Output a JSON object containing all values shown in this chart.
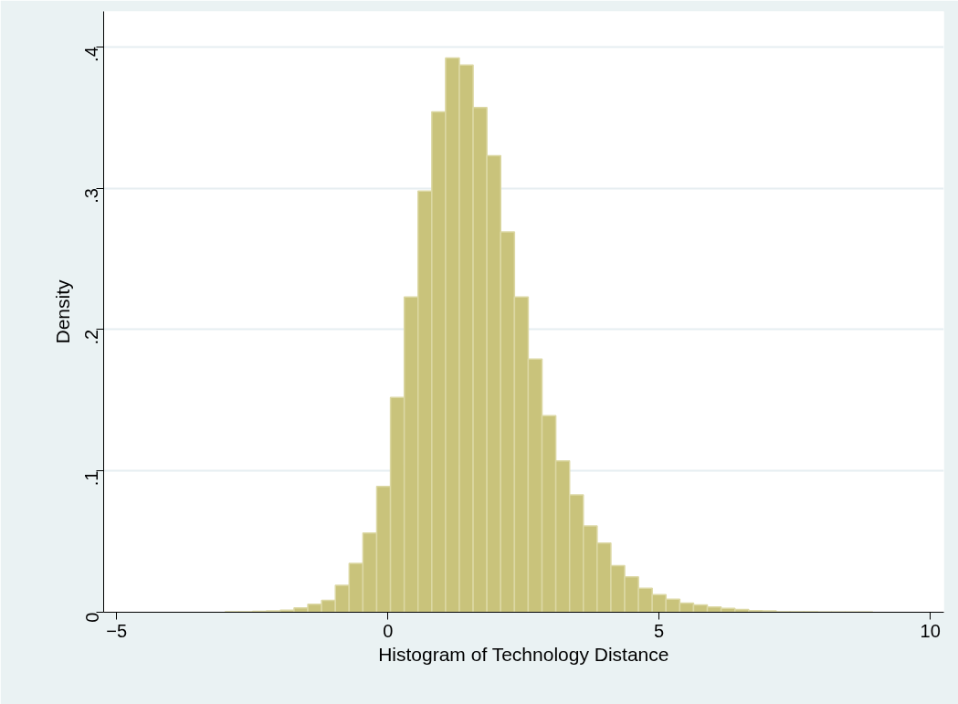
{
  "chart_data": {
    "type": "histogram",
    "xlabel": "Histogram of Technology Distance",
    "ylabel": "Density",
    "bins": [
      -3,
      -2.746,
      -2.492,
      -2.238,
      -1.984,
      -1.73,
      -1.476,
      -1.222,
      -0.968,
      -0.714,
      -0.46,
      -0.206,
      0.048,
      0.302,
      0.556,
      0.81,
      1.064,
      1.318,
      1.572,
      1.826,
      2.08,
      2.334,
      2.588,
      2.842,
      3.096,
      3.35,
      3.604,
      3.858,
      4.112,
      4.366,
      4.62,
      4.874,
      5.128,
      5.382,
      5.636,
      5.89,
      6.144,
      6.398,
      6.652,
      6.906,
      7.16,
      7.414,
      7.668,
      7.922,
      8.176,
      8.43,
      8.684,
      8.938,
      9.192,
      9.446
    ],
    "values": [
      0.0004,
      0.0004,
      0.0006,
      0.0009,
      0.0015,
      0.003,
      0.0056,
      0.0084,
      0.019,
      0.0345,
      0.056,
      0.089,
      0.152,
      0.223,
      0.298,
      0.354,
      0.392,
      0.387,
      0.357,
      0.323,
      0.269,
      0.223,
      0.179,
      0.139,
      0.107,
      0.083,
      0.061,
      0.049,
      0.033,
      0.025,
      0.017,
      0.0125,
      0.0092,
      0.0065,
      0.0052,
      0.0037,
      0.0028,
      0.002,
      0.0011,
      0.0009,
      0.0004,
      0.0003,
      0.0003,
      0.0002,
      0.0002,
      0.0002,
      0.0002,
      null,
      null
    ],
    "color": "#c9c37b",
    "xlim": [
      -5.24,
      10.25
    ],
    "ylim": [
      0,
      0.425
    ],
    "xticks": [
      -5,
      0,
      5,
      10
    ],
    "yticks": [
      0,
      {
        "value": 0.1,
        "label": ".1"
      },
      {
        "value": 0.2,
        "label": ".2"
      },
      {
        "value": 0.3,
        "label": ".3"
      },
      {
        "value": 0.4,
        "label": ".4"
      }
    ],
    "grid": "y"
  }
}
